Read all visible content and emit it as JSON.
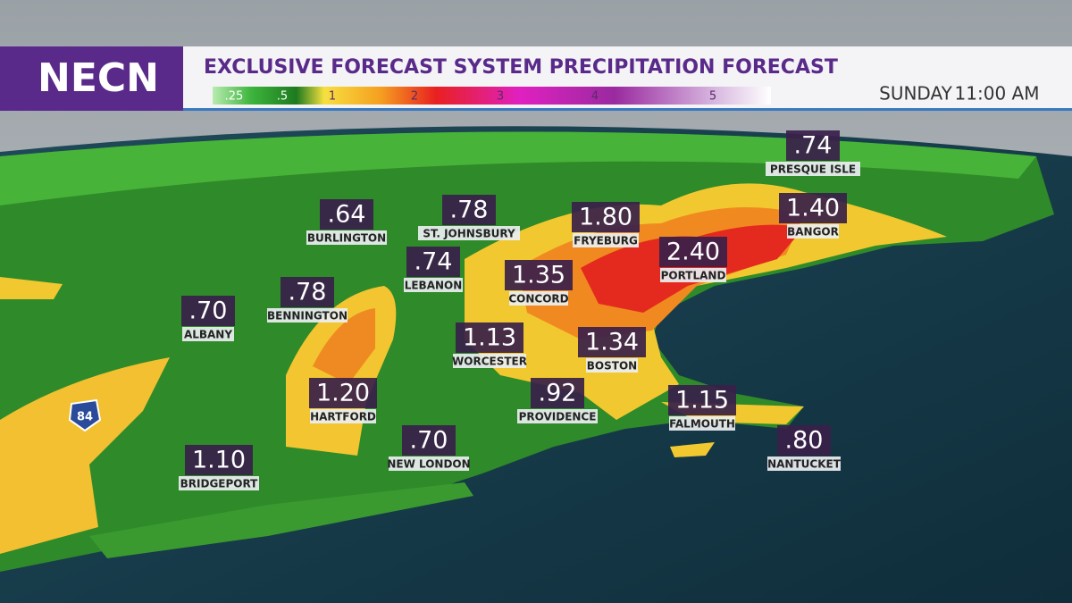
{
  "header": {
    "logo": "NECN",
    "title": "EXCLUSIVE FORECAST SYSTEM PRECIPITATION FORECAST",
    "day": "SUNDAY",
    "time": "11:00 AM"
  },
  "legend": {
    "labels": [
      ".25",
      ".5",
      "1",
      "2",
      "3",
      "4",
      "5"
    ]
  },
  "highway": "84",
  "cities": [
    {
      "name": "PRESQUE ISLE",
      "amount": ".74"
    },
    {
      "name": "BURLINGTON",
      "amount": ".64"
    },
    {
      "name": "ST. JOHNSBURY",
      "amount": ".78"
    },
    {
      "name": "FRYEBURG",
      "amount": "1.80"
    },
    {
      "name": "BANGOR",
      "amount": "1.40"
    },
    {
      "name": "LEBANON",
      "amount": ".74"
    },
    {
      "name": "CONCORD",
      "amount": "1.35"
    },
    {
      "name": "PORTLAND",
      "amount": "2.40"
    },
    {
      "name": "ALBANY",
      "amount": ".70"
    },
    {
      "name": "BENNINGTON",
      "amount": ".78"
    },
    {
      "name": "WORCESTER",
      "amount": "1.13"
    },
    {
      "name": "BOSTON",
      "amount": "1.34"
    },
    {
      "name": "HARTFORD",
      "amount": "1.20"
    },
    {
      "name": "PROVIDENCE",
      "amount": ".92"
    },
    {
      "name": "FALMOUTH",
      "amount": "1.15"
    },
    {
      "name": "NANTUCKET",
      "amount": ".80"
    },
    {
      "name": "NEW LONDON",
      "amount": ".70"
    },
    {
      "name": "BRIDGEPORT",
      "amount": "1.10"
    }
  ]
}
